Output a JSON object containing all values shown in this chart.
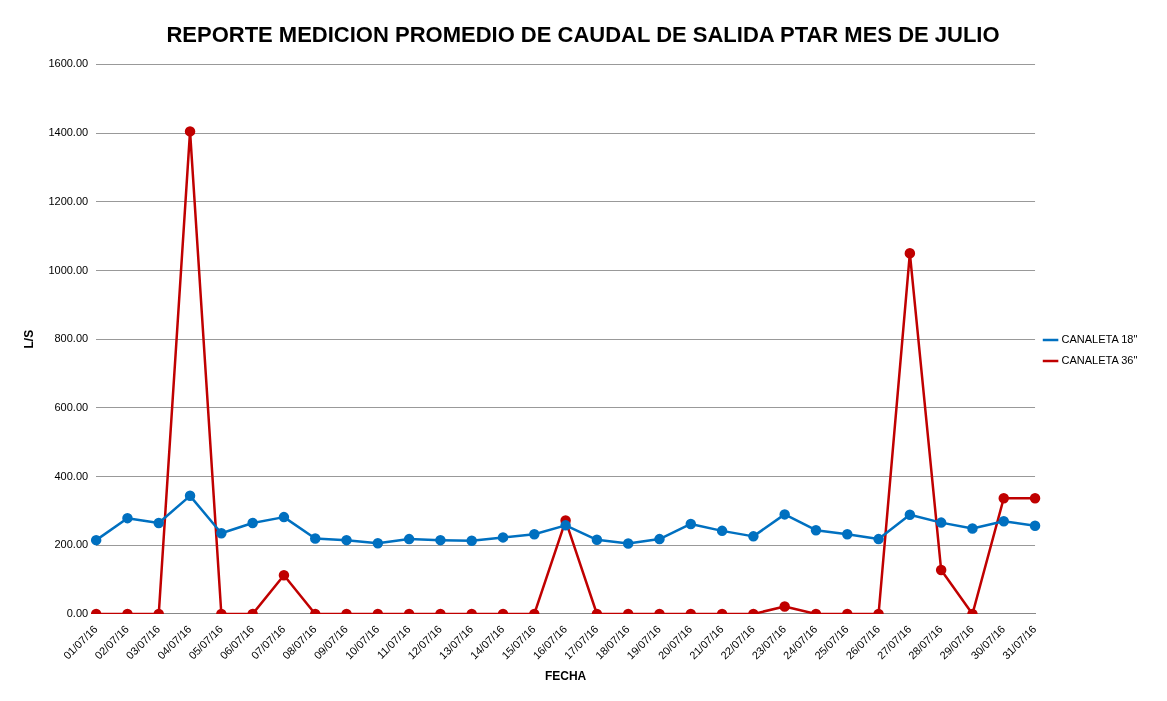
{
  "chart_data": {
    "type": "line",
    "title": "REPORTE MEDICION PROMEDIO DE CAUDAL DE SALIDA PTAR MES DE JULIO",
    "xlabel": "FECHA",
    "ylabel": "L/S",
    "categories": [
      "01/07/16",
      "02/07/16",
      "03/07/16",
      "04/07/16",
      "05/07/16",
      "06/07/16",
      "07/07/16",
      "08/07/16",
      "09/07/16",
      "10/07/16",
      "11/07/16",
      "12/07/16",
      "13/07/16",
      "14/07/16",
      "15/07/16",
      "16/07/16",
      "17/07/16",
      "18/07/16",
      "19/07/16",
      "20/07/16",
      "21/07/16",
      "22/07/16",
      "23/07/16",
      "24/07/16",
      "25/07/16",
      "26/07/16",
      "27/07/16",
      "28/07/16",
      "29/07/16",
      "30/07/16",
      "31/07/16"
    ],
    "series": [
      {
        "name": "CANALETA 18\"",
        "color": "#0070c0",
        "values": [
          215,
          279,
          265,
          344,
          235,
          265,
          282,
          220,
          215,
          206,
          218,
          215,
          213,
          223,
          232,
          258,
          216,
          205,
          218,
          262,
          242,
          226,
          290,
          244,
          232,
          218,
          289,
          266,
          249,
          270,
          257
        ]
      },
      {
        "name": "CANALETA 36\"",
        "color": "#c00000",
        "values": [
          0,
          0,
          0,
          1405,
          0,
          0,
          113,
          0,
          0,
          0,
          0,
          0,
          0,
          0,
          0,
          272,
          0,
          0,
          0,
          0,
          0,
          0,
          22,
          0,
          0,
          0,
          1050,
          128,
          0,
          337,
          337
        ]
      }
    ],
    "ylim": [
      0,
      1600
    ],
    "yticks": [
      {
        "value": 0,
        "label": "0.00"
      },
      {
        "value": 200,
        "label": "200.00"
      },
      {
        "value": 400,
        "label": "400.00"
      },
      {
        "value": 600,
        "label": "600.00"
      },
      {
        "value": 800,
        "label": "800.00"
      },
      {
        "value": 1000,
        "label": "1000.00"
      },
      {
        "value": 1200,
        "label": "1200.00"
      },
      {
        "value": 1400,
        "label": "1400.00"
      },
      {
        "value": 1600,
        "label": "1600.00"
      }
    ],
    "grid": "y",
    "legend": "right",
    "marker": "circle",
    "line_style": "solid"
  }
}
